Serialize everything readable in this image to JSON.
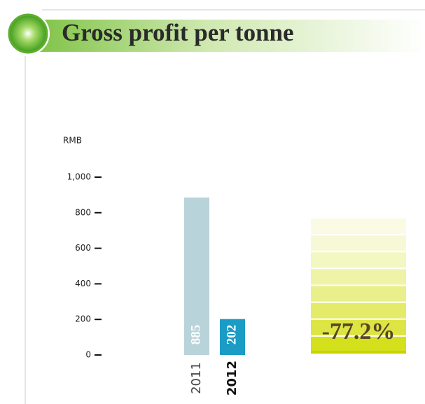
{
  "chart_data": {
    "type": "bar",
    "title": "Gross profit per tonne",
    "y_label": "RMB",
    "categories": [
      "2011",
      "2012"
    ],
    "values": [
      885,
      202
    ],
    "colors": [
      "#b9d3da",
      "#1a9cc4"
    ],
    "ylim": [
      0,
      1000
    ],
    "yticks": [
      0,
      200,
      400,
      600,
      800,
      {
        "value": 1000,
        "label": "1,000"
      }
    ],
    "annotation": "-77.2%"
  }
}
